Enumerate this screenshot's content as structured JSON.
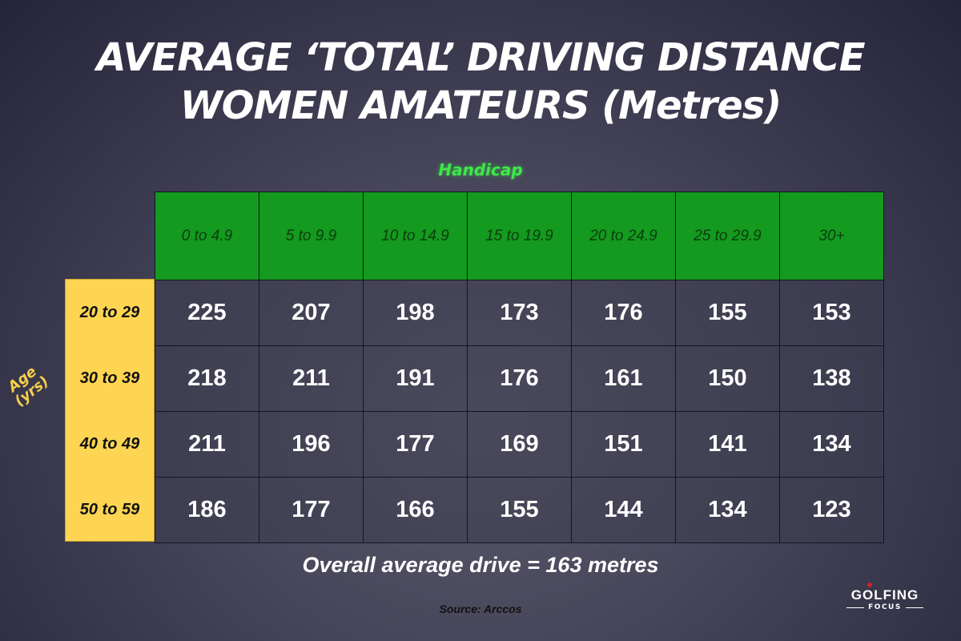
{
  "title": {
    "line1": "AVERAGE  ‘TOTAL’ DRIVING DISTANCE",
    "line2": "WOMEN AMATEURS (Metres)"
  },
  "handicap_label": "Handicap",
  "age_axis": {
    "line1": "Age",
    "line2": "(yrs)"
  },
  "handicaps": [
    "0 to 4.9",
    "5 to 9.9",
    "10 to 14.9",
    "15 to 19.9",
    "20 to 24.9",
    "25 to 29.9",
    "30+"
  ],
  "ages": [
    "20 to 29",
    "30 to 39",
    "40 to 49",
    "50 to 59"
  ],
  "rows": [
    [
      "225",
      "207",
      "198",
      "173",
      "176",
      "155",
      "153"
    ],
    [
      "218",
      "211",
      "191",
      "176",
      "161",
      "150",
      "138"
    ],
    [
      "211",
      "196",
      "177",
      "169",
      "151",
      "141",
      "134"
    ],
    [
      "186",
      "177",
      "166",
      "155",
      "144",
      "134",
      "123"
    ]
  ],
  "overall": "Overall average drive = 163 metres",
  "source": "Source: Arccos",
  "logo": {
    "line1": "GOLFING",
    "line2": "FOCUS"
  },
  "colors": {
    "header_green": "#149a1e",
    "age_yellow": "#fed552",
    "handicap_label": "#3ee84a"
  },
  "chart_data": {
    "type": "table",
    "title": "AVERAGE ‘TOTAL’ DRIVING DISTANCE WOMEN AMATEURS (Metres)",
    "column_header_label": "Handicap",
    "row_header_label": "Age (yrs)",
    "columns": [
      "0 to 4.9",
      "5 to 9.9",
      "10 to 14.9",
      "15 to 19.9",
      "20 to 24.9",
      "25 to 29.9",
      "30+"
    ],
    "rows": [
      "20 to 29",
      "30 to 39",
      "40 to 49",
      "50 to 59"
    ],
    "values": [
      [
        225,
        207,
        198,
        173,
        176,
        155,
        153
      ],
      [
        218,
        211,
        191,
        176,
        161,
        150,
        138
      ],
      [
        211,
        196,
        177,
        169,
        151,
        141,
        134
      ],
      [
        186,
        177,
        166,
        155,
        144,
        134,
        123
      ]
    ],
    "annotation": "Overall average drive = 163 metres",
    "source": "Source: Arccos"
  }
}
